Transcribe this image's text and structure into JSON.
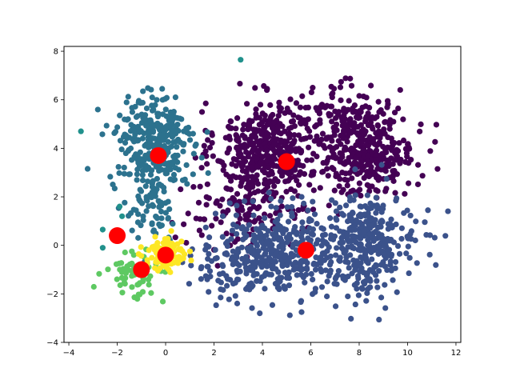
{
  "chart_data": {
    "type": "scatter",
    "title": "",
    "xlabel": "",
    "ylabel": "",
    "xlim": [
      -4.2,
      12.2
    ],
    "ylim": [
      -4,
      8.2
    ],
    "xticks": [
      -4,
      -2,
      0,
      2,
      4,
      6,
      8,
      10,
      12
    ],
    "yticks": [
      -4,
      -2,
      0,
      2,
      4,
      6,
      8
    ],
    "grid": false,
    "legend": "none",
    "series": [
      {
        "color": "#440154",
        "regions": [
          {
            "cx": 4.2,
            "cy": 4.0,
            "sx": 1.05,
            "sy": 0.95,
            "n": 420
          },
          {
            "cx": 8.3,
            "cy": 4.0,
            "sx": 1.0,
            "sy": 0.95,
            "n": 380
          },
          {
            "cx": 3.5,
            "cy": 1.4,
            "sx": 1.4,
            "sy": 0.8,
            "n": 140
          },
          {
            "cx": 6.5,
            "cy": 5.5,
            "sx": 1.0,
            "sy": 0.6,
            "n": 50
          }
        ]
      },
      {
        "color": "#3b528b",
        "regions": [
          {
            "cx": 4.5,
            "cy": -0.3,
            "sx": 1.1,
            "sy": 0.95,
            "n": 330
          },
          {
            "cx": 8.2,
            "cy": 0.0,
            "sx": 1.1,
            "sy": 1.0,
            "n": 360
          },
          {
            "cx": 2.2,
            "cy": -0.8,
            "sx": 0.9,
            "sy": 0.6,
            "n": 50
          }
        ]
      },
      {
        "color": "#2c728e",
        "regions": [
          {
            "cx": -0.5,
            "cy": 4.2,
            "sx": 0.85,
            "sy": 1.05,
            "n": 300
          },
          {
            "cx": -0.6,
            "cy": 1.6,
            "sx": 0.55,
            "sy": 0.7,
            "n": 70
          }
        ]
      },
      {
        "color": "#21918c",
        "points": [
          [
            -3.5,
            4.7
          ],
          [
            3.1,
            7.65
          ],
          [
            -2.6,
            0.65
          ],
          [
            -1.9,
            1.6
          ],
          [
            -1.8,
            1.2
          ],
          [
            -2.6,
            -0.1
          ]
        ]
      },
      {
        "color": "#5ec962",
        "regions": [
          {
            "cx": -1.3,
            "cy": -1.2,
            "sx": 0.55,
            "sy": 0.5,
            "n": 60
          }
        ]
      },
      {
        "color": "#fde725",
        "regions": [
          {
            "cx": 0.0,
            "cy": -0.4,
            "sx": 0.45,
            "sy": 0.35,
            "n": 110
          }
        ]
      }
    ],
    "centroids": {
      "color": "#ff0000",
      "points": [
        [
          -0.3,
          3.7
        ],
        [
          5.0,
          3.45
        ],
        [
          -2.0,
          0.4
        ],
        [
          0.0,
          -0.4
        ],
        [
          -1.0,
          -1.0
        ],
        [
          5.8,
          -0.2
        ]
      ]
    }
  }
}
